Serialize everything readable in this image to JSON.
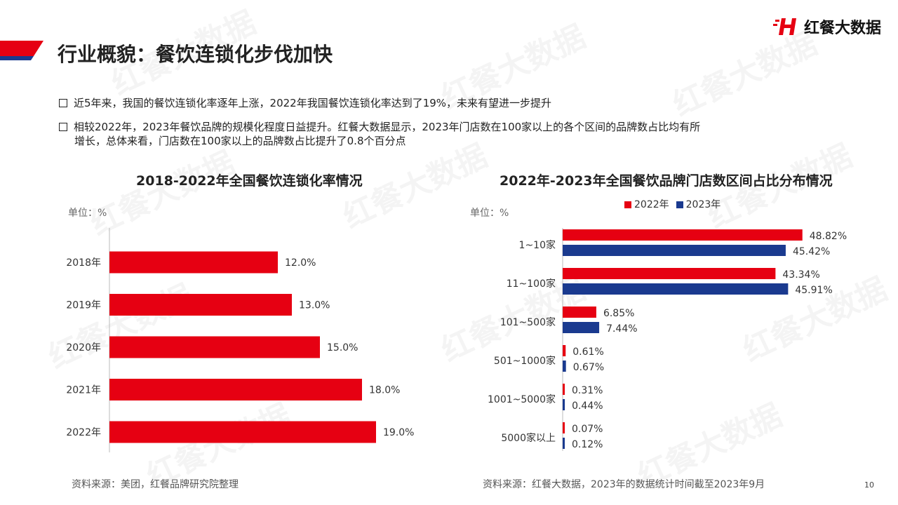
{
  "page": {
    "title": "行业概貌：餐饮连锁化步伐加快",
    "logo_text": "红餐大数据",
    "bullets": [
      {
        "line1": "近5年来，我国的餐饮连锁化率逐年上涨，2022年我国餐饮连锁化率达到了19%，未来有望进一步提升",
        "line2": ""
      },
      {
        "line1": "相较2022年，2023年餐饮品牌的规模化程度日益提升。红餐大数据显示，2023年门店数在100家以上的各个区间的品牌数占比均有所",
        "line2": "增长，总体来看，门店数在100家以上的品牌数占比提升了0.8个百分点"
      }
    ],
    "page_number": "10",
    "watermark": "红餐大数据"
  },
  "colors": {
    "red": "#e60012",
    "blue": "#1a3a8f",
    "title_bar_red": "#e60012",
    "title_bar_blue": "#1a3a8f"
  },
  "chart_data": [
    {
      "type": "bar",
      "orientation": "horizontal",
      "title": "2018-2022年全国餐饮连锁化率情况",
      "unit": "单位：%",
      "categories": [
        "2018年",
        "2019年",
        "2020年",
        "2021年",
        "2022年"
      ],
      "values": [
        12.0,
        13.0,
        15.0,
        18.0,
        19.0
      ],
      "value_labels": [
        "12.0%",
        "13.0%",
        "15.0%",
        "18.0%",
        "19.0%"
      ],
      "xlim": [
        0,
        20
      ],
      "grid": false,
      "source": "资料来源：美团，红餐品牌研究院整理"
    },
    {
      "type": "bar",
      "orientation": "horizontal",
      "title": "2022年-2023年全国餐饮品牌门店数区间占比分布情况",
      "unit": "单位：%",
      "categories": [
        "1~10家",
        "11~100家",
        "101~500家",
        "501~1000家",
        "1001~5000家",
        "5000家以上"
      ],
      "series": [
        {
          "name": "2022年",
          "values": [
            48.82,
            43.34,
            6.85,
            0.61,
            0.31,
            0.07
          ],
          "labels": [
            "48.82%",
            "43.34%",
            "6.85%",
            "0.61%",
            "0.31%",
            "0.07%"
          ]
        },
        {
          "name": "2023年",
          "values": [
            45.42,
            45.91,
            7.44,
            0.67,
            0.44,
            0.12
          ],
          "labels": [
            "45.42%",
            "45.91%",
            "7.44%",
            "0.67%",
            "0.44%",
            "0.12%"
          ]
        }
      ],
      "xlim": [
        0,
        50
      ],
      "legend": "top-center",
      "grid": false,
      "source": "资料来源：红餐大数据，2023年的数据统计时间截至2023年9月"
    }
  ]
}
